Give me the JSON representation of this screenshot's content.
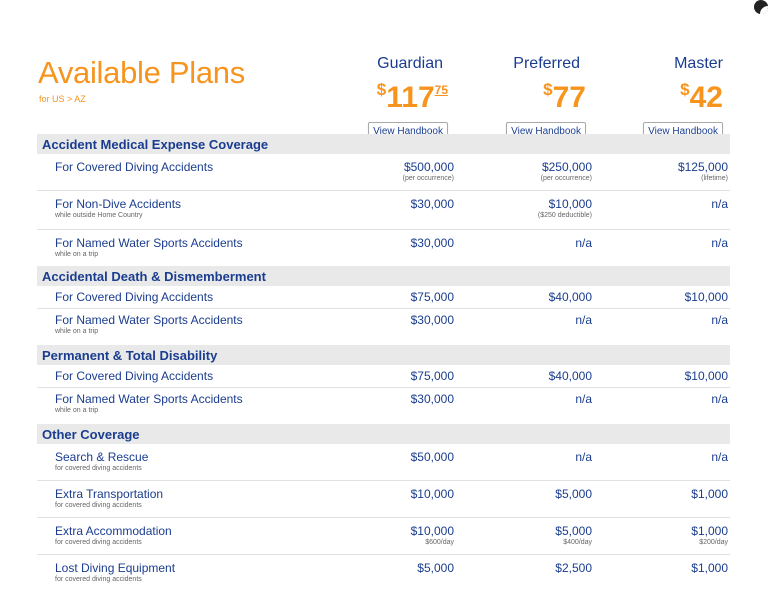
{
  "header": {
    "title": "Available Plans",
    "subtitle": "for US > AZ"
  },
  "plans": [
    {
      "name": "Guardian",
      "currency": "$",
      "dollars": "117",
      "cents": "75",
      "button": "View Handbook"
    },
    {
      "name": "Preferred",
      "currency": "$",
      "dollars": "77",
      "cents": "",
      "button": "View Handbook"
    },
    {
      "name": "Master",
      "currency": "$",
      "dollars": "42",
      "cents": "",
      "button": "View Handbook"
    }
  ],
  "sections": [
    {
      "title": "Accident Medical Expense Coverage",
      "rows": [
        {
          "name": "For Covered Diving Accidents",
          "sub": "",
          "values": [
            {
              "value": "$500,000",
              "note": "(per occurrence)"
            },
            {
              "value": "$250,000",
              "note": "(per occurrence)"
            },
            {
              "value": "$125,000",
              "note": "(lifetime)"
            }
          ]
        },
        {
          "name": "For Non-Dive Accidents",
          "sub": "while outside Home Country",
          "values": [
            {
              "value": "$30,000",
              "note": ""
            },
            {
              "value": "$10,000",
              "note": "($250 deductible)"
            },
            {
              "value": "n/a",
              "note": ""
            }
          ]
        },
        {
          "name": "For Named Water Sports Accidents",
          "sub": "while on a trip",
          "values": [
            {
              "value": "$30,000",
              "note": ""
            },
            {
              "value": "n/a",
              "note": ""
            },
            {
              "value": "n/a",
              "note": ""
            }
          ]
        }
      ]
    },
    {
      "title": "Accidental Death & Dismemberment",
      "rows": [
        {
          "name": "For Covered Diving Accidents",
          "sub": "",
          "values": [
            {
              "value": "$75,000",
              "note": ""
            },
            {
              "value": "$40,000",
              "note": ""
            },
            {
              "value": "$10,000",
              "note": ""
            }
          ]
        },
        {
          "name": "For Named Water Sports Accidents",
          "sub": "while on a trip",
          "values": [
            {
              "value": "$30,000",
              "note": ""
            },
            {
              "value": "n/a",
              "note": ""
            },
            {
              "value": "n/a",
              "note": ""
            }
          ]
        }
      ]
    },
    {
      "title": "Permanent & Total Disability",
      "rows": [
        {
          "name": "For Covered Diving Accidents",
          "sub": "",
          "values": [
            {
              "value": "$75,000",
              "note": ""
            },
            {
              "value": "$40,000",
              "note": ""
            },
            {
              "value": "$10,000",
              "note": ""
            }
          ]
        },
        {
          "name": "For Named Water Sports Accidents",
          "sub": "while on a trip",
          "values": [
            {
              "value": "$30,000",
              "note": ""
            },
            {
              "value": "n/a",
              "note": ""
            },
            {
              "value": "n/a",
              "note": ""
            }
          ]
        }
      ]
    },
    {
      "title": "Other Coverage",
      "rows": [
        {
          "name": "Search & Rescue",
          "sub": "for covered diving accidents",
          "values": [
            {
              "value": "$50,000",
              "note": ""
            },
            {
              "value": "n/a",
              "note": ""
            },
            {
              "value": "n/a",
              "note": ""
            }
          ]
        },
        {
          "name": "Extra Transportation",
          "sub": "for covered diving accidents",
          "values": [
            {
              "value": "$10,000",
              "note": ""
            },
            {
              "value": "$5,000",
              "note": ""
            },
            {
              "value": "$1,000",
              "note": ""
            }
          ]
        },
        {
          "name": "Extra Accommodation",
          "sub": "for covered diving accidents",
          "values": [
            {
              "value": "$10,000",
              "note": "$600/day"
            },
            {
              "value": "$5,000",
              "note": "$400/day"
            },
            {
              "value": "$1,000",
              "note": "$200/day"
            }
          ]
        },
        {
          "name": "Lost Diving Equipment",
          "sub": "for covered diving accidents",
          "values": [
            {
              "value": "$5,000",
              "note": ""
            },
            {
              "value": "$2,500",
              "note": ""
            },
            {
              "value": "$1,000",
              "note": ""
            }
          ]
        }
      ]
    }
  ]
}
